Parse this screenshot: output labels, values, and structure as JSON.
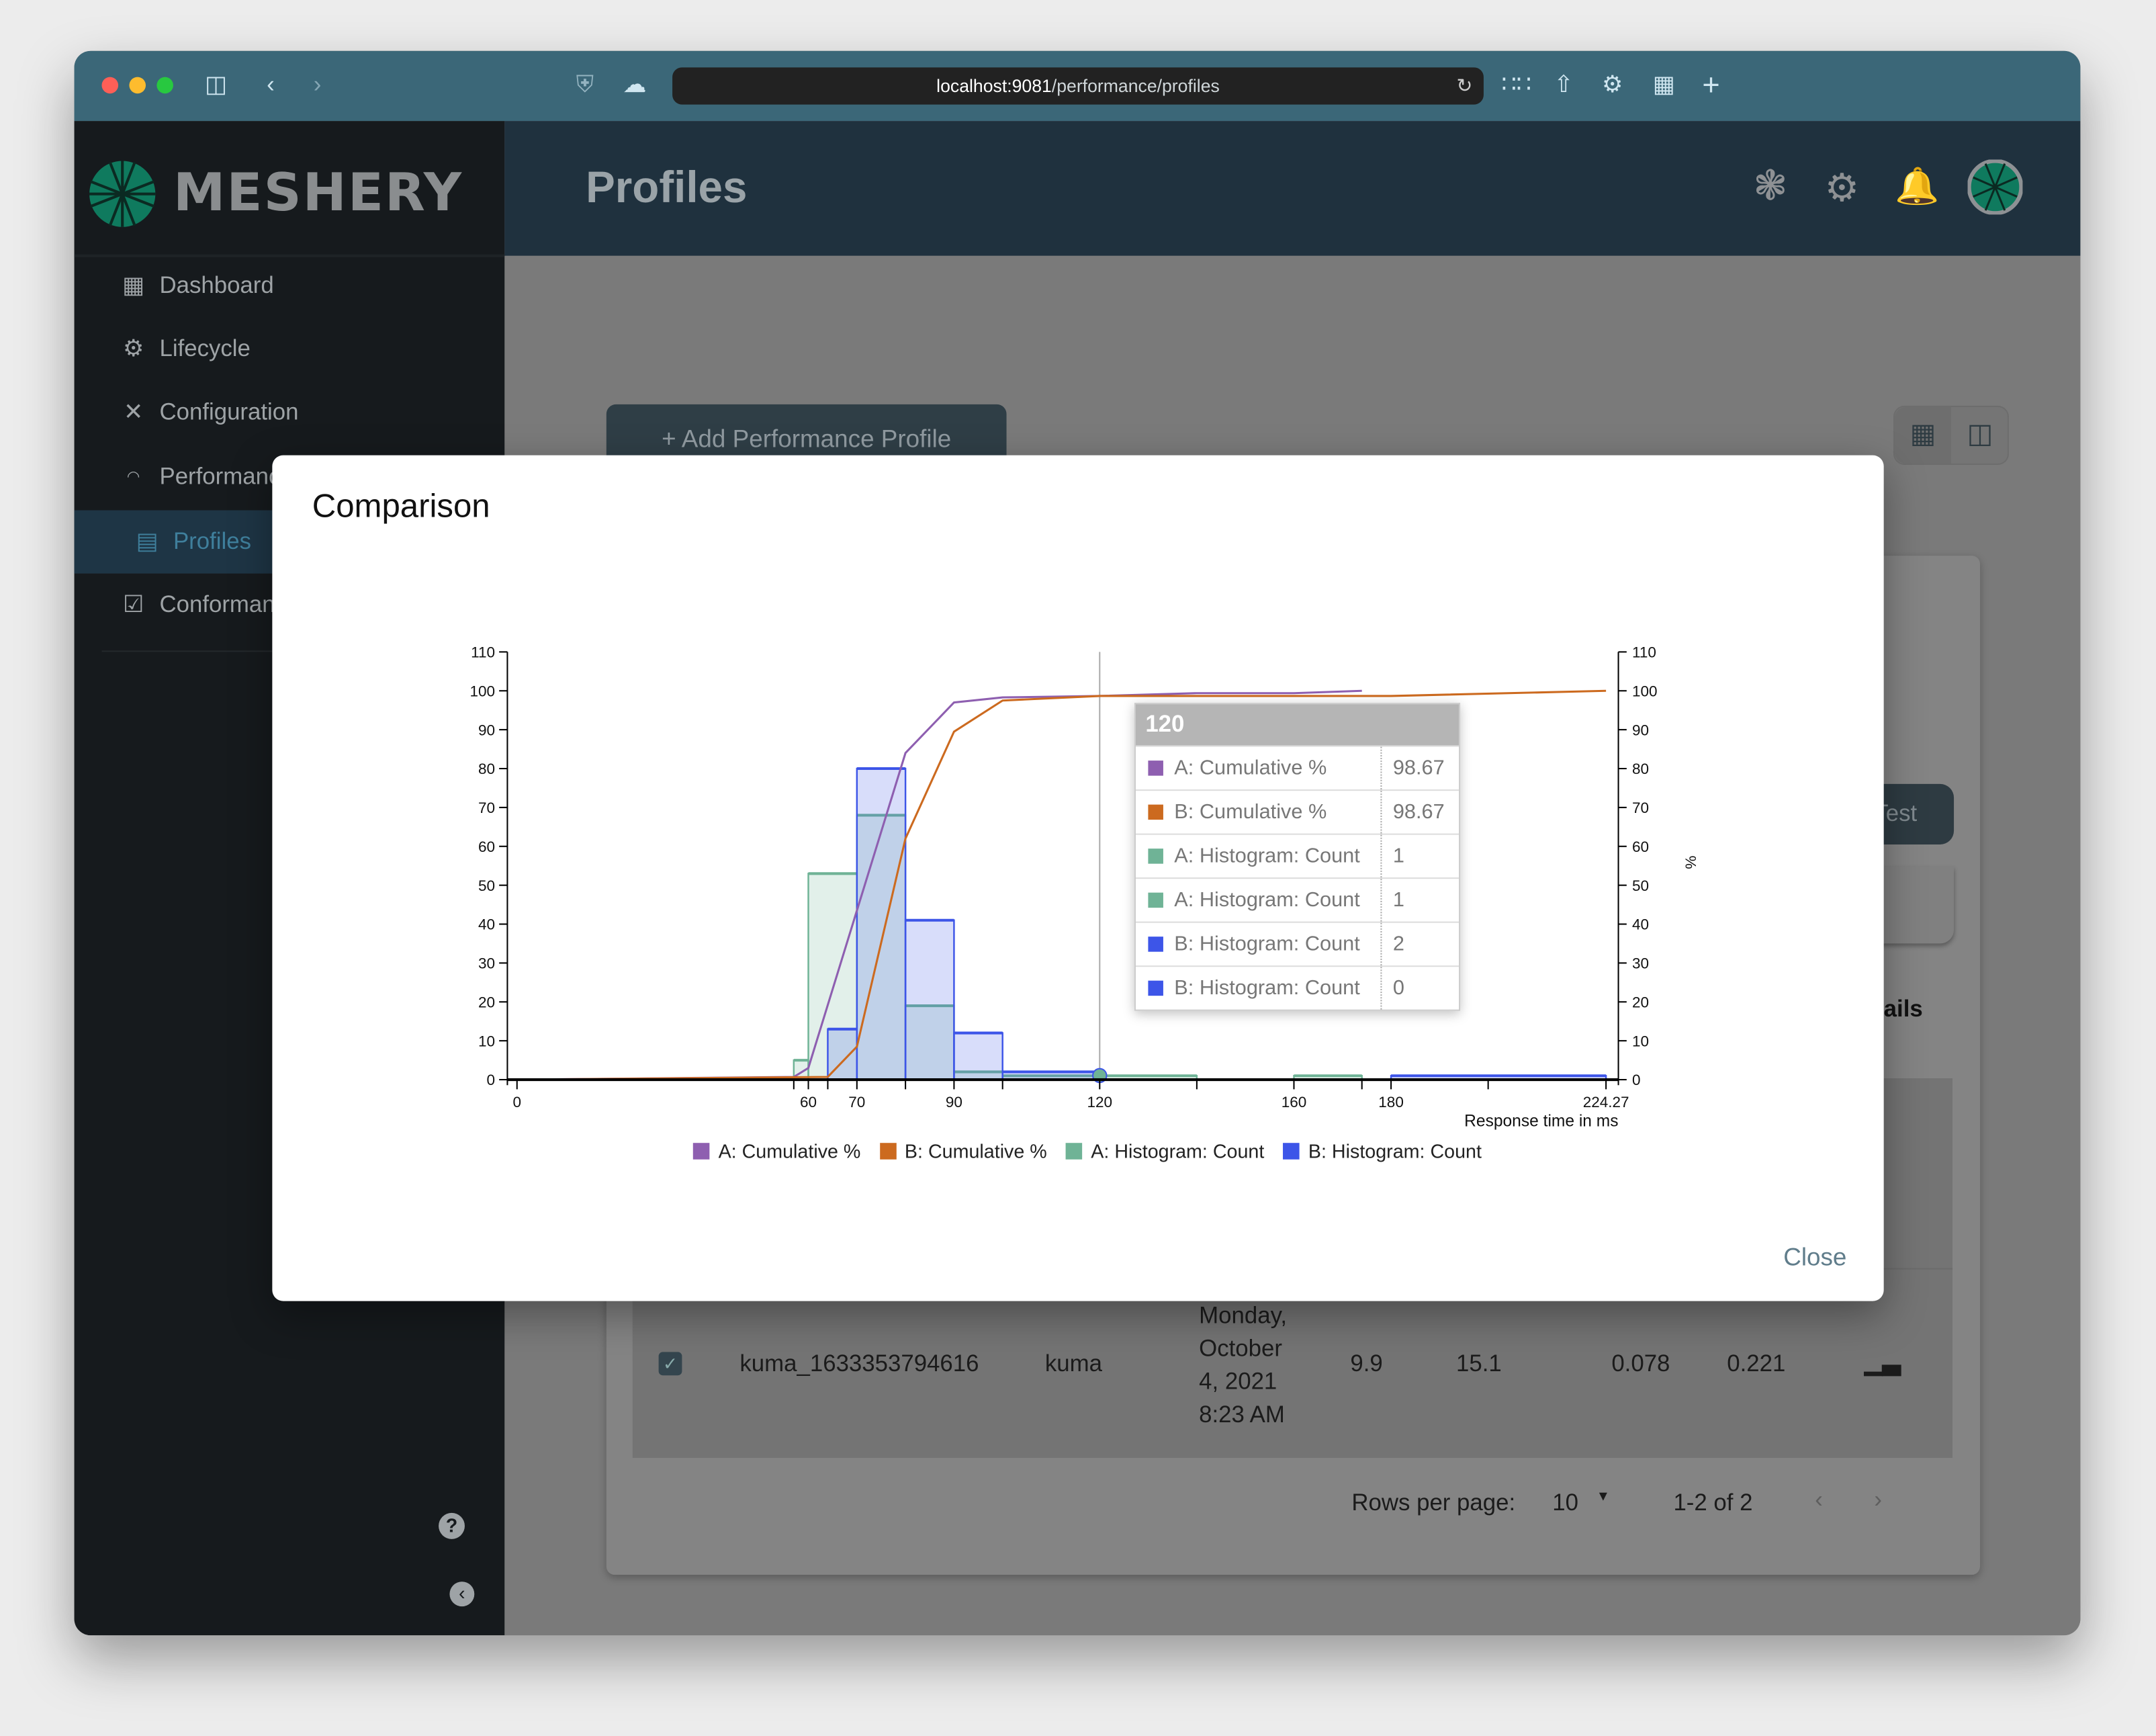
{
  "browser": {
    "url_host": "localhost:9081",
    "url_path": "/performance/profiles",
    "icons": [
      "sidebar-toggle-icon",
      "back-icon",
      "forward-icon",
      "shield-icon",
      "cloud-icon",
      "reload-icon",
      "extensions-grid-icon",
      "share-icon",
      "settings-icon",
      "tabs-overview-icon",
      "new-tab-icon"
    ]
  },
  "app": {
    "brand": "MESHERY",
    "page_title": "Profiles",
    "header_icons": [
      "service-mesh-icon",
      "settings-gear-icon",
      "notification-bell-icon",
      "user-avatar"
    ]
  },
  "sidebar": {
    "items": [
      {
        "label": "Dashboard",
        "icon": "dashboard-icon",
        "active": false
      },
      {
        "label": "Lifecycle",
        "icon": "gears-icon",
        "active": false
      },
      {
        "label": "Configuration",
        "icon": "tools-icon",
        "active": false
      },
      {
        "label": "Performance",
        "icon": "smp-gauge-icon",
        "active": false
      },
      {
        "label": "Profiles",
        "icon": "profiles-card-icon",
        "active": true
      },
      {
        "label": "Conformance",
        "icon": "checklist-icon",
        "active": false
      }
    ],
    "footer_icons": [
      "help-icon",
      "collapse-chevron-icon"
    ]
  },
  "background": {
    "add_profile_button": "+ Add Performance Profile",
    "run_test_fragment": "Test",
    "details_fragment": "ails",
    "arrow": "←",
    "table_row": {
      "checked": true,
      "name": "kuma_1633353794616",
      "mesh": "kuma",
      "date_lines": [
        "Monday,",
        "October",
        "4, 2021",
        "8:23 AM"
      ],
      "qps": "9.9",
      "duration": "15.1",
      "p50": "0.078",
      "p99": "0.221"
    },
    "pagination": {
      "rows_per_page_label": "Rows per page:",
      "rows_per_page": "10",
      "range": "1-2 of 2"
    }
  },
  "modal": {
    "title": "Comparison",
    "close_label": "Close"
  },
  "chart_data": {
    "type": "bar+line",
    "xlabel": "Response time in ms",
    "ylabel_right": "%",
    "xlim": [
      0,
      224.27
    ],
    "ylim": [
      0,
      110
    ],
    "y_ticks": [
      0,
      10,
      20,
      30,
      40,
      50,
      60,
      70,
      80,
      90,
      100,
      110
    ],
    "x_ticks": [
      {
        "value": 0,
        "label": "0"
      },
      {
        "value": 57,
        "label": ""
      },
      {
        "value": 60,
        "label": "60"
      },
      {
        "value": 64,
        "label": ""
      },
      {
        "value": 70,
        "label": "70"
      },
      {
        "value": 80,
        "label": ""
      },
      {
        "value": 90,
        "label": "90"
      },
      {
        "value": 100,
        "label": ""
      },
      {
        "value": 120,
        "label": "120"
      },
      {
        "value": 140,
        "label": ""
      },
      {
        "value": 160,
        "label": "160"
      },
      {
        "value": 174,
        "label": ""
      },
      {
        "value": 180,
        "label": "180"
      },
      {
        "value": 200,
        "label": ""
      },
      {
        "value": 224.27,
        "label": "224.27"
      }
    ],
    "legend_position": "bottom",
    "series": [
      {
        "name": "A: Cumulative %",
        "kind": "line",
        "color": "#8e5fb0",
        "points": [
          [
            0,
            0
          ],
          [
            57,
            0.7
          ],
          [
            60,
            3
          ],
          [
            80,
            84
          ],
          [
            90,
            97
          ],
          [
            100,
            98.3
          ],
          [
            120,
            98.67
          ],
          [
            140,
            99.4
          ],
          [
            160,
            99.4
          ],
          [
            174,
            100
          ]
        ]
      },
      {
        "name": "B: Cumulative %",
        "kind": "line",
        "color": "#cc6a1f",
        "points": [
          [
            0,
            0
          ],
          [
            64,
            0.7
          ],
          [
            70,
            8.5
          ],
          [
            80,
            62
          ],
          [
            90,
            89.5
          ],
          [
            100,
            97.5
          ],
          [
            120,
            98.67
          ],
          [
            180,
            98.67
          ],
          [
            224.27,
            100
          ]
        ]
      },
      {
        "name": "A: Histogram: Count",
        "kind": "histogram",
        "color": "#6fb396",
        "bins": [
          [
            57,
            60,
            5
          ],
          [
            60,
            70,
            53
          ],
          [
            70,
            80,
            68
          ],
          [
            80,
            90,
            19
          ],
          [
            90,
            100,
            2
          ],
          [
            100,
            120,
            1
          ],
          [
            120,
            140,
            1
          ],
          [
            160,
            174,
            1
          ]
        ]
      },
      {
        "name": "B: Histogram: Count",
        "kind": "histogram",
        "color": "#3d55e8",
        "bins": [
          [
            64,
            70,
            13
          ],
          [
            70,
            80,
            80
          ],
          [
            80,
            90,
            41
          ],
          [
            90,
            100,
            12
          ],
          [
            100,
            120,
            2
          ],
          [
            180,
            224.27,
            1
          ]
        ]
      }
    ],
    "hover": {
      "x": 120,
      "title": "120",
      "rows": [
        {
          "name": "A: Cumulative %",
          "value": "98.67",
          "color": "#8e5fb0"
        },
        {
          "name": "B: Cumulative %",
          "value": "98.67",
          "color": "#cc6a1f"
        },
        {
          "name": "A: Histogram: Count",
          "value": "1",
          "color": "#6fb396"
        },
        {
          "name": "A: Histogram: Count",
          "value": "1",
          "color": "#6fb396"
        },
        {
          "name": "B: Histogram: Count",
          "value": "2",
          "color": "#3d55e8"
        },
        {
          "name": "B: Histogram: Count",
          "value": "0",
          "color": "#3d55e8"
        }
      ]
    }
  }
}
